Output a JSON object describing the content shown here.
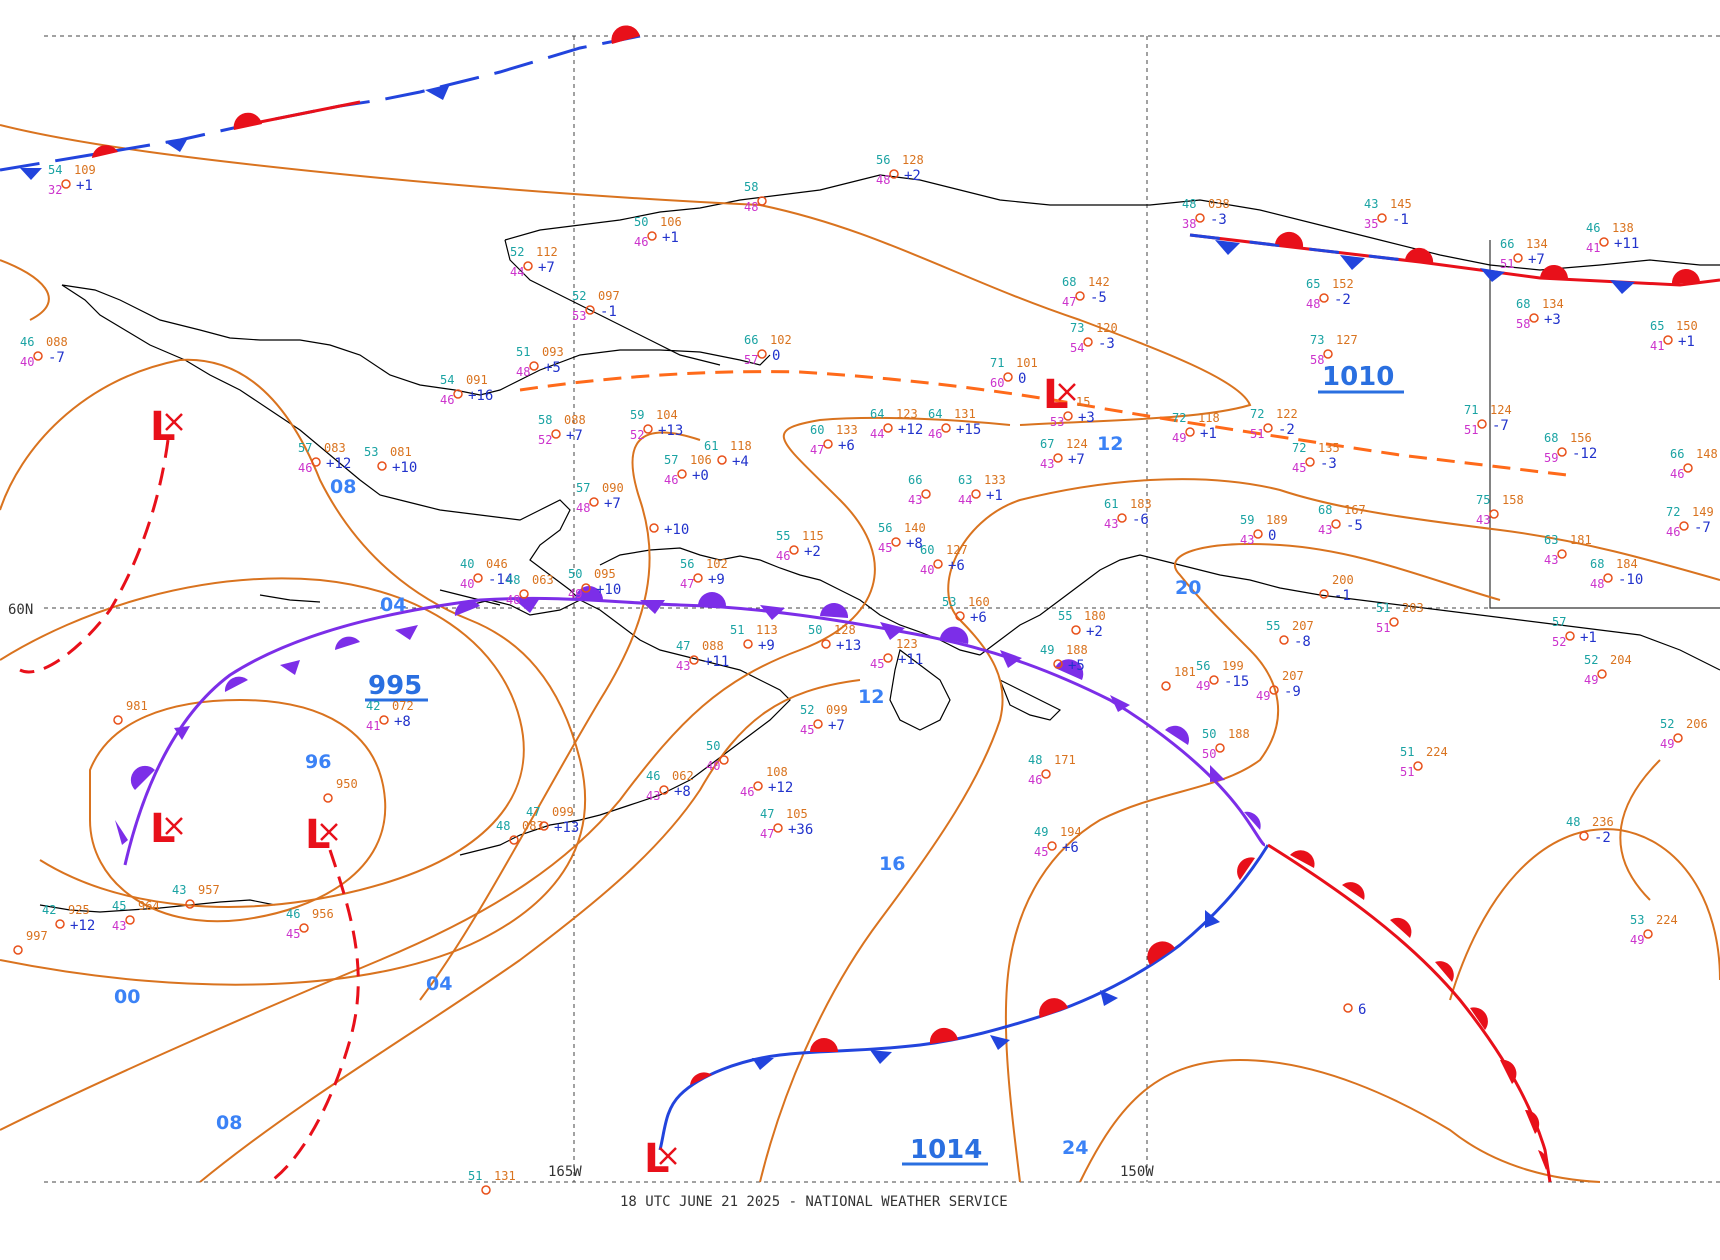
{
  "footer": "18 UTC JUNE 21 2025 - NATIONAL WEATHER SERVICE",
  "grid_labels": {
    "lat_60": "60N",
    "lon_165": "165W",
    "lon_150": "150W"
  },
  "pressure_centers": [
    {
      "id": "low-995",
      "type": "L",
      "value": "995"
    },
    {
      "id": "low-1014",
      "type": "L",
      "value": "1014"
    },
    {
      "id": "high-1010",
      "type": "trough",
      "value": "1010"
    }
  ],
  "isobar_labels": [
    "04",
    "08",
    "96",
    "00",
    "04",
    "08",
    "12",
    "12",
    "16",
    "20",
    "24",
    "08",
    "12"
  ],
  "stations": [
    {
      "t": "54",
      "p": "109",
      "d": "32",
      "c": "+1"
    },
    {
      "t": "46",
      "p": "088",
      "d": "40",
      "c": "-7"
    },
    {
      "t": "52",
      "p": "112",
      "d": "44",
      "c": "+7"
    },
    {
      "t": "50",
      "p": "106",
      "d": "46",
      "c": "+1"
    },
    {
      "t": "58",
      "p": "",
      "d": "48",
      "c": ""
    },
    {
      "t": "56",
      "p": "128",
      "d": "48",
      "c": "+2"
    },
    {
      "t": "52",
      "p": "097",
      "d": "53",
      "c": "-1"
    },
    {
      "t": "51",
      "p": "093",
      "d": "48",
      "c": "+5"
    },
    {
      "t": "54",
      "p": "091",
      "d": "46",
      "c": "+16"
    },
    {
      "t": "66",
      "p": "102",
      "d": "57",
      "c": "0"
    },
    {
      "t": "58",
      "p": "088",
      "d": "52",
      "c": "+7"
    },
    {
      "t": "59",
      "p": "104",
      "d": "52",
      "c": "+13"
    },
    {
      "t": "57",
      "p": "083",
      "d": "46",
      "c": "+12"
    },
    {
      "t": "53",
      "p": "081",
      "d": "",
      "c": "+10"
    },
    {
      "t": "57",
      "p": "106",
      "d": "46",
      "c": "+0"
    },
    {
      "t": "61",
      "p": "118",
      "d": "",
      "c": "+4"
    },
    {
      "t": "60",
      "p": "133",
      "d": "47",
      "c": "+6"
    },
    {
      "t": "64",
      "p": "123",
      "d": "44",
      "c": "+12"
    },
    {
      "t": "64",
      "p": "131",
      "d": "46",
      "c": "+15"
    },
    {
      "t": "57",
      "p": "090",
      "d": "48",
      "c": "+7"
    },
    {
      "t": "",
      "p": "",
      "d": "",
      "c": "+10"
    },
    {
      "t": "66",
      "p": "",
      "d": "43",
      "c": ""
    },
    {
      "t": "63",
      "p": "133",
      "d": "44",
      "c": "+1"
    },
    {
      "t": "55",
      "p": "115",
      "d": "46",
      "c": "+2"
    },
    {
      "t": "56",
      "p": "140",
      "d": "45",
      "c": "+8"
    },
    {
      "t": "60",
      "p": "127",
      "d": "40",
      "c": "+6"
    },
    {
      "t": "56",
      "p": "102",
      "d": "47",
      "c": "+9"
    },
    {
      "t": "40",
      "p": "046",
      "d": "40",
      "c": "-14"
    },
    {
      "t": "48",
      "p": "063",
      "d": "48",
      "c": ""
    },
    {
      "t": "50",
      "p": "095",
      "d": "49",
      "c": "+10"
    },
    {
      "t": "47",
      "p": "088",
      "d": "43",
      "c": "+11"
    },
    {
      "t": "51",
      "p": "113",
      "d": "",
      "c": "+9"
    },
    {
      "t": "50",
      "p": "128",
      "d": "",
      "c": "+13"
    },
    {
      "t": "",
      "p": "123",
      "d": "45",
      "c": "+11"
    },
    {
      "t": "42",
      "p": "072",
      "d": "41",
      "c": "+8"
    },
    {
      "t": "",
      "p": "981",
      "d": "",
      "c": ""
    },
    {
      "t": "",
      "p": "950",
      "d": "",
      "c": ""
    },
    {
      "t": "52",
      "p": "099",
      "d": "45",
      "c": "+7"
    },
    {
      "t": "50",
      "p": "",
      "d": "40",
      "c": ""
    },
    {
      "t": "46",
      "p": "062",
      "d": "43",
      "c": "+8"
    },
    {
      "t": "",
      "p": "108",
      "d": "46",
      "c": "+12"
    },
    {
      "t": "47",
      "p": "105",
      "d": "47",
      "c": "+36"
    },
    {
      "t": "48",
      "p": "083",
      "d": "",
      "c": ""
    },
    {
      "t": "47",
      "p": "099",
      "d": "",
      "c": "+13"
    },
    {
      "t": "43",
      "p": "957",
      "d": "",
      "c": ""
    },
    {
      "t": "42",
      "p": "925",
      "d": "",
      "c": "+12"
    },
    {
      "t": "45",
      "p": "964",
      "d": "43",
      "c": ""
    },
    {
      "t": "46",
      "p": "956",
      "d": "45",
      "c": ""
    },
    {
      "t": "",
      "p": "997",
      "d": "",
      "c": ""
    },
    {
      "t": "68",
      "p": "142",
      "d": "47",
      "c": "-5"
    },
    {
      "t": "73",
      "p": "120",
      "d": "54",
      "c": "-3"
    },
    {
      "t": "71",
      "p": "101",
      "d": "60",
      "c": "0"
    },
    {
      "t": "67",
      "p": "124",
      "d": "43",
      "c": "+7"
    },
    {
      "t": "",
      "p": "15",
      "d": "53",
      "c": "+3"
    },
    {
      "t": "72",
      "p": "118",
      "d": "49",
      "c": "+1"
    },
    {
      "t": "72",
      "p": "122",
      "d": "51",
      "c": "-2"
    },
    {
      "t": "72",
      "p": "135",
      "d": "45",
      "c": "-3"
    },
    {
      "t": "61",
      "p": "183",
      "d": "43",
      "c": "-6"
    },
    {
      "t": "59",
      "p": "189",
      "d": "43",
      "c": "0"
    },
    {
      "t": "68",
      "p": "167",
      "d": "43",
      "c": "-5"
    },
    {
      "t": "53",
      "p": "160",
      "d": "",
      "c": "+6"
    },
    {
      "t": "55",
      "p": "180",
      "d": "",
      "c": "+2"
    },
    {
      "t": "49",
      "p": "188",
      "d": "",
      "c": "+5"
    },
    {
      "t": "",
      "p": "181",
      "d": "",
      "c": ""
    },
    {
      "t": "56",
      "p": "199",
      "d": "49",
      "c": "-15"
    },
    {
      "t": "",
      "p": "207",
      "d": "49",
      "c": "-9"
    },
    {
      "t": "50",
      "p": "188",
      "d": "50",
      "c": ""
    },
    {
      "t": "48",
      "p": "171",
      "d": "46",
      "c": ""
    },
    {
      "t": "49",
      "p": "194",
      "d": "45",
      "c": "+6"
    },
    {
      "t": "51",
      "p": "224",
      "d": "51",
      "c": ""
    },
    {
      "t": "48",
      "p": "236",
      "d": "",
      "c": "-2"
    },
    {
      "t": "53",
      "p": "224",
      "d": "49",
      "c": ""
    },
    {
      "t": "",
      "p": "",
      "d": "",
      "c": "6"
    },
    {
      "t": "48",
      "p": "038",
      "d": "38",
      "c": "-3"
    },
    {
      "t": "43",
      "p": "145",
      "d": "35",
      "c": "-1"
    },
    {
      "t": "65",
      "p": "152",
      "d": "48",
      "c": "-2"
    },
    {
      "t": "73",
      "p": "127",
      "d": "58",
      "c": ""
    },
    {
      "t": "66",
      "p": "134",
      "d": "51",
      "c": "+7"
    },
    {
      "t": "46",
      "p": "138",
      "d": "41",
      "c": "+11"
    },
    {
      "t": "68",
      "p": "134",
      "d": "58",
      "c": "+3"
    },
    {
      "t": "65",
      "p": "150",
      "d": "41",
      "c": "+1"
    },
    {
      "t": "71",
      "p": "124",
      "d": "51",
      "c": "-7"
    },
    {
      "t": "68",
      "p": "156",
      "d": "59",
      "c": "-12"
    },
    {
      "t": "66",
      "p": "148",
      "d": "46",
      "c": ""
    },
    {
      "t": "75",
      "p": "158",
      "d": "43",
      "c": ""
    },
    {
      "t": "72",
      "p": "149",
      "d": "46",
      "c": "-7"
    },
    {
      "t": "63",
      "p": "181",
      "d": "43",
      "c": ""
    },
    {
      "t": "68",
      "p": "184",
      "d": "48",
      "c": "-10"
    },
    {
      "t": "",
      "p": "200",
      "d": "",
      "c": "-1"
    },
    {
      "t": "55",
      "p": "207",
      "d": "",
      "c": "-8"
    },
    {
      "t": "51",
      "p": "203",
      "d": "51",
      "c": ""
    },
    {
      "t": "57",
      "p": "",
      "d": "52",
      "c": "+1"
    },
    {
      "t": "52",
      "p": "204",
      "d": "49",
      "c": ""
    },
    {
      "t": "52",
      "p": "206",
      "d": "49",
      "c": ""
    },
    {
      "t": "51",
      "p": "131",
      "d": "",
      "c": ""
    }
  ]
}
